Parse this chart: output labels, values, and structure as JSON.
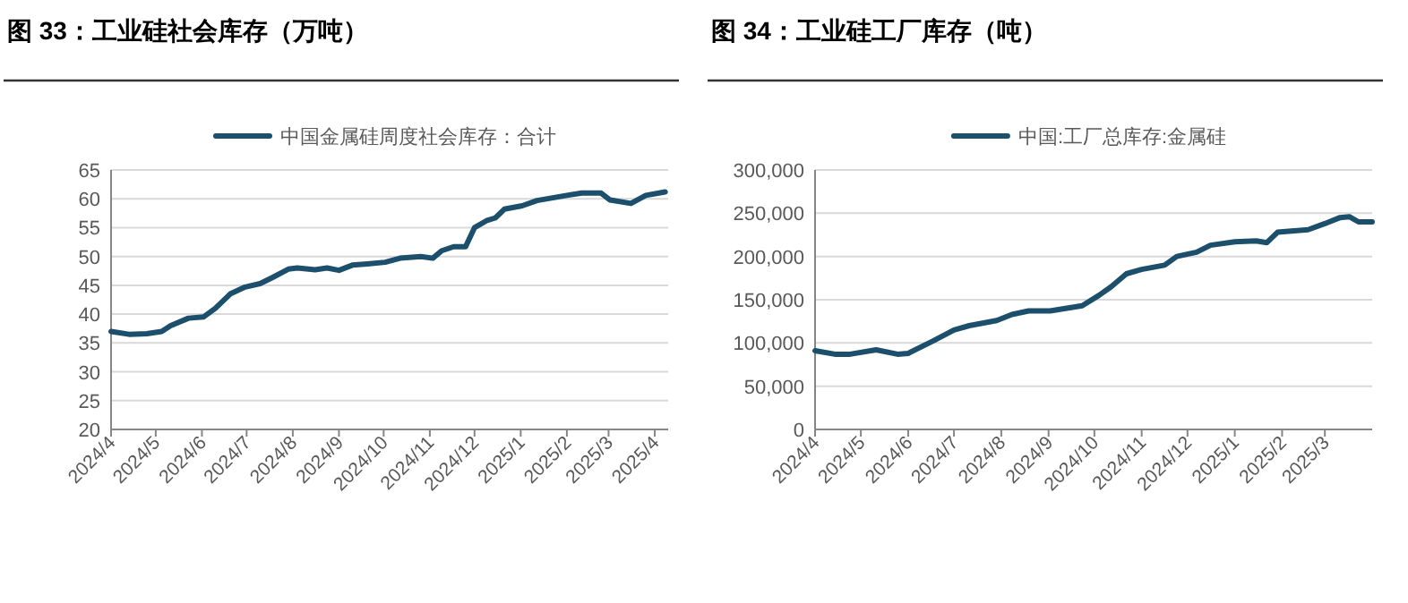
{
  "chart_data": [
    {
      "type": "line",
      "title": "图 33：工业硅社会库存（万吨）",
      "legend": "top",
      "grid": "y",
      "marker": "none",
      "line_style": "solid",
      "xlim": [
        "2024-04-01",
        "2025-04-10"
      ],
      "xticks": [
        {
          "value": "2024-04",
          "label": "2024/4"
        },
        {
          "value": "2024-05",
          "label": "2024/5"
        },
        {
          "value": "2024-06",
          "label": "2024/6"
        },
        {
          "value": "2024-07",
          "label": "2024/7"
        },
        {
          "value": "2024-08",
          "label": "2024/8"
        },
        {
          "value": "2024-09",
          "label": "2024/9"
        },
        {
          "value": "2024-10",
          "label": "2024/10"
        },
        {
          "value": "2024-11",
          "label": "2024/11"
        },
        {
          "value": "2024-12",
          "label": "2024/12"
        },
        {
          "value": "2025-01",
          "label": "2025/1"
        },
        {
          "value": "2025-02",
          "label": "2025/2"
        },
        {
          "value": "2025-03",
          "label": "2025/3"
        },
        {
          "value": "2025-04",
          "label": "2025/4"
        }
      ],
      "ylim": [
        20,
        65
      ],
      "yticks": [
        20,
        25,
        30,
        35,
        40,
        45,
        50,
        55,
        60,
        65
      ],
      "x": [
        "2024-04-01",
        "2024-04-13",
        "2024-04-25",
        "2024-05-05",
        "2024-05-11",
        "2024-05-23",
        "2024-06-02",
        "2024-06-10",
        "2024-06-20",
        "2024-06-30",
        "2024-07-10",
        "2024-07-18",
        "2024-07-29",
        "2024-08-04",
        "2024-08-16",
        "2024-08-24",
        "2024-09-01",
        "2024-09-10",
        "2024-09-20",
        "2024-10-02",
        "2024-10-12",
        "2024-10-26",
        "2024-11-03",
        "2024-11-09",
        "2024-11-17",
        "2024-11-25",
        "2024-12-01",
        "2024-12-09",
        "2024-12-15",
        "2024-12-21",
        "2025-01-02",
        "2025-01-12",
        "2025-02-01",
        "2025-02-11",
        "2025-02-24",
        "2025-03-02",
        "2025-03-16",
        "2025-03-26",
        "2025-04-08"
      ],
      "series": [
        {
          "name": "中国金属硅周度社会库存：合计",
          "color": "#1b4f6b",
          "values": [
            37.0,
            36.5,
            36.6,
            37.0,
            38.0,
            39.3,
            39.5,
            41.0,
            43.5,
            44.7,
            45.3,
            46.3,
            47.8,
            48.0,
            47.7,
            48.0,
            47.6,
            48.5,
            48.7,
            49.0,
            49.7,
            50.0,
            49.7,
            51.0,
            51.7,
            51.7,
            55.0,
            56.2,
            56.7,
            58.2,
            58.8,
            59.7,
            60.6,
            61.0,
            61.0,
            59.8,
            59.2,
            60.6,
            61.2
          ]
        }
      ]
    },
    {
      "type": "line",
      "title": "图 34：工业硅工厂库存（吨）",
      "legend": "top",
      "grid": "y",
      "marker": "none",
      "line_style": "solid",
      "xlim": [
        "2024-04-01",
        "2025-04-01"
      ],
      "xticks": [
        {
          "value": "2024-04",
          "label": "2024/4"
        },
        {
          "value": "2024-05",
          "label": "2024/5"
        },
        {
          "value": "2024-06",
          "label": "2024/6"
        },
        {
          "value": "2024-07",
          "label": "2024/7"
        },
        {
          "value": "2024-08",
          "label": "2024/8"
        },
        {
          "value": "2024-09",
          "label": "2024/9"
        },
        {
          "value": "2024-10",
          "label": "2024/10"
        },
        {
          "value": "2024-11",
          "label": "2024/11"
        },
        {
          "value": "2024-12",
          "label": "2024/12"
        },
        {
          "value": "2025-01",
          "label": "2025/1"
        },
        {
          "value": "2025-02",
          "label": "2025/2"
        },
        {
          "value": "2025-03",
          "label": "2025/3"
        }
      ],
      "ylim": [
        0,
        300000
      ],
      "yticks": [
        0,
        {
          "value": 50000,
          "label": "50,000"
        },
        {
          "value": 100000,
          "label": "100,000"
        },
        {
          "value": 150000,
          "label": "150,000"
        },
        {
          "value": 200000,
          "label": "200,000"
        },
        {
          "value": 250000,
          "label": "250,000"
        },
        {
          "value": 300000,
          "label": "300,000"
        }
      ],
      "x": [
        "2024-04-01",
        "2024-04-14",
        "2024-04-24",
        "2024-05-11",
        "2024-05-25",
        "2024-06-01",
        "2024-06-17",
        "2024-07-01",
        "2024-07-11",
        "2024-07-29",
        "2024-08-08",
        "2024-08-19",
        "2024-09-02",
        "2024-09-23",
        "2024-10-04",
        "2024-10-12",
        "2024-10-22",
        "2024-11-01",
        "2024-11-16",
        "2024-11-24",
        "2024-12-07",
        "2024-12-16",
        "2025-01-01",
        "2025-01-15",
        "2025-01-22",
        "2025-01-29",
        "2025-02-18",
        "2025-03-01",
        "2025-03-11",
        "2025-03-17",
        "2025-03-23",
        "2025-04-01"
      ],
      "series": [
        {
          "name": "中国:工厂总库存:金属硅",
          "color": "#1b4f6b",
          "values": [
            91000,
            87000,
            87000,
            92000,
            87000,
            88000,
            102000,
            115000,
            120000,
            126000,
            133000,
            137000,
            137000,
            143000,
            155000,
            165000,
            180000,
            185000,
            190000,
            200000,
            205000,
            213000,
            217000,
            218000,
            216000,
            228000,
            231000,
            238000,
            245000,
            246000,
            240000,
            240000
          ]
        }
      ]
    }
  ]
}
